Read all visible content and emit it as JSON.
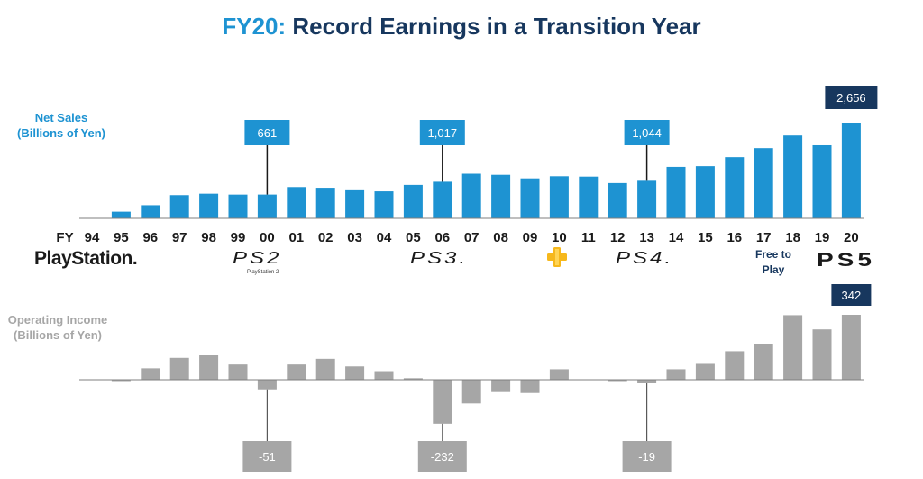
{
  "title": {
    "highlight": "FY20:",
    "rest": "Record Earnings in a Transition Year"
  },
  "labels": {
    "net_sales": [
      "Net Sales",
      "(Billions of Yen)"
    ],
    "operating_income": [
      "Operating Income",
      "(Billions of Yen)"
    ],
    "fy_prefix": "FY"
  },
  "logos": {
    "ps1": "PlayStation.",
    "ps2": "PS2",
    "ps2_sub": "PlayStation 2",
    "ps3": "PS3.",
    "ps4": "PS4.",
    "ps5": "PS5",
    "plus_icon": "playstation-plus-icon",
    "free_to_play": [
      "Free to",
      "Play"
    ]
  },
  "colors": {
    "title_accent": "#1e93d2",
    "title_main": "#17375e",
    "net_sales_bar": "#1e93d2",
    "operating_income_bar": "#a6a6a6",
    "callout_dark": "#17375e"
  },
  "chart_data": [
    {
      "type": "bar",
      "series_label": "Net Sales (Billions of Yen)",
      "categories": [
        "94",
        "95",
        "96",
        "97",
        "98",
        "99",
        "00",
        "01",
        "02",
        "03",
        "04",
        "05",
        "06",
        "07",
        "08",
        "09",
        "10",
        "11",
        "12",
        "13",
        "14",
        "15",
        "16",
        "17",
        "18",
        "19",
        "20"
      ],
      "values": [
        0,
        185,
        365,
        645,
        685,
        660,
        661,
        870,
        850,
        780,
        750,
        930,
        1017,
        1240,
        1210,
        1110,
        1170,
        1160,
        980,
        1044,
        1430,
        1450,
        1700,
        1950,
        2300,
        2030,
        2656
      ],
      "callouts": [
        {
          "index": 6,
          "label": "661",
          "style": "accent"
        },
        {
          "index": 12,
          "label": "1,017",
          "style": "accent"
        },
        {
          "index": 19,
          "label": "1,044",
          "style": "accent"
        },
        {
          "index": 26,
          "label": "2,656",
          "style": "dark"
        }
      ],
      "ylim": [
        0,
        2656
      ]
    },
    {
      "type": "bar",
      "series_label": "Operating Income (Billions of Yen)",
      "categories": [
        "94",
        "95",
        "96",
        "97",
        "98",
        "99",
        "00",
        "01",
        "02",
        "03",
        "04",
        "05",
        "06",
        "07",
        "08",
        "09",
        "10",
        "11",
        "12",
        "13",
        "14",
        "15",
        "16",
        "17",
        "18",
        "19",
        "20"
      ],
      "values": [
        0,
        -4,
        60,
        115,
        130,
        80,
        -51,
        80,
        110,
        70,
        45,
        8,
        -232,
        -125,
        -65,
        -70,
        55,
        0,
        -2,
        -19,
        55,
        88,
        150,
        190,
        340,
        265,
        342
      ],
      "callouts": [
        {
          "index": 6,
          "label": "-51",
          "style": "gray"
        },
        {
          "index": 12,
          "label": "-232",
          "style": "gray"
        },
        {
          "index": 19,
          "label": "-19",
          "style": "gray"
        },
        {
          "index": 26,
          "label": "342",
          "style": "dark"
        }
      ],
      "ylim": [
        -232,
        342
      ]
    }
  ]
}
